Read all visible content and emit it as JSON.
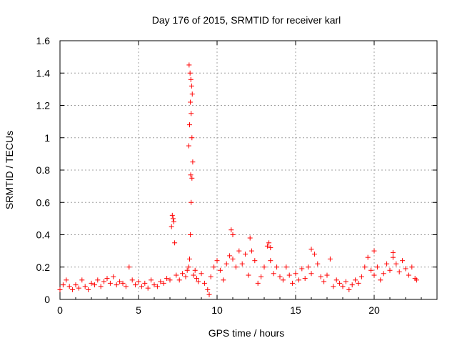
{
  "chart_data": {
    "type": "scatter",
    "title": "Day 176 of 2015, SRMTID for receiver karl",
    "xlabel": "GPS time / hours",
    "ylabel": "SRMTID / TECUs",
    "xlim": [
      0,
      24
    ],
    "ylim": [
      0,
      1.6
    ],
    "xticks": [
      0,
      5,
      10,
      15,
      20
    ],
    "yticks": [
      0,
      0.2,
      0.4,
      0.6,
      0.8,
      1,
      1.2,
      1.4,
      1.6
    ],
    "xtick_labels": [
      "0",
      "5",
      "10",
      "15",
      "20"
    ],
    "ytick_labels": [
      "0",
      "0.2",
      "0.4",
      "0.6",
      "0.8",
      "1",
      "1.2",
      "1.4",
      "1.6"
    ],
    "grid": true,
    "marker": "+",
    "color": "#ff0000",
    "series": [
      {
        "name": "SRMTID",
        "x": [
          0.0,
          0.2,
          0.4,
          0.6,
          0.8,
          1.0,
          1.2,
          1.4,
          1.6,
          1.8,
          2.0,
          2.2,
          2.4,
          2.6,
          2.8,
          3.0,
          3.2,
          3.4,
          3.6,
          3.8,
          4.0,
          4.2,
          4.4,
          4.6,
          4.8,
          5.0,
          5.2,
          5.4,
          5.6,
          5.8,
          6.0,
          6.2,
          6.4,
          6.6,
          6.8,
          7.0,
          7.1,
          7.2,
          7.3,
          7.4,
          7.6,
          7.8,
          8.0,
          8.1,
          8.2,
          8.25,
          8.3,
          8.35,
          8.4,
          8.45,
          8.5,
          8.6,
          8.7,
          8.8,
          9.0,
          9.2,
          9.4,
          9.5,
          9.6,
          9.8,
          10.0,
          10.2,
          10.4,
          10.6,
          10.8,
          11.0,
          11.2,
          11.4,
          11.6,
          11.8,
          12.0,
          12.2,
          12.4,
          12.6,
          12.8,
          13.0,
          13.2,
          13.4,
          13.6,
          13.8,
          14.0,
          14.2,
          14.4,
          14.6,
          14.8,
          15.0,
          15.2,
          15.4,
          15.6,
          15.8,
          16.0,
          16.2,
          16.4,
          16.6,
          16.8,
          17.0,
          17.2,
          17.4,
          17.6,
          17.8,
          18.0,
          18.2,
          18.4,
          18.6,
          18.8,
          19.0,
          19.2,
          19.4,
          19.6,
          19.8,
          20.0,
          20.2,
          20.4,
          20.6,
          20.8,
          21.0,
          21.2,
          21.4,
          21.6,
          21.8,
          22.0,
          22.2,
          22.4,
          22.6,
          22.7,
          7.15,
          7.25,
          8.22,
          8.28,
          8.33,
          8.38,
          8.42,
          8.3,
          8.35,
          8.25,
          8.4,
          8.2,
          8.32,
          10.9,
          11.0,
          12.1,
          13.3,
          13.4,
          16.0,
          20.0,
          21.2
        ],
        "y": [
          0.06,
          0.09,
          0.12,
          0.08,
          0.06,
          0.09,
          0.07,
          0.12,
          0.08,
          0.06,
          0.1,
          0.09,
          0.12,
          0.08,
          0.11,
          0.13,
          0.1,
          0.14,
          0.09,
          0.11,
          0.1,
          0.08,
          0.2,
          0.12,
          0.09,
          0.11,
          0.08,
          0.1,
          0.07,
          0.12,
          0.09,
          0.08,
          0.11,
          0.1,
          0.13,
          0.12,
          0.45,
          0.5,
          0.35,
          0.15,
          0.12,
          0.16,
          0.14,
          0.18,
          0.2,
          0.25,
          0.4,
          0.6,
          0.75,
          0.85,
          0.15,
          0.18,
          0.13,
          0.11,
          0.16,
          0.1,
          0.06,
          0.03,
          0.14,
          0.2,
          0.24,
          0.18,
          0.12,
          0.22,
          0.27,
          0.25,
          0.2,
          0.3,
          0.22,
          0.28,
          0.15,
          0.3,
          0.24,
          0.1,
          0.14,
          0.2,
          0.33,
          0.24,
          0.16,
          0.2,
          0.14,
          0.12,
          0.2,
          0.15,
          0.1,
          0.16,
          0.12,
          0.19,
          0.13,
          0.2,
          0.16,
          0.28,
          0.22,
          0.14,
          0.11,
          0.15,
          0.25,
          0.08,
          0.12,
          0.1,
          0.08,
          0.11,
          0.06,
          0.09,
          0.12,
          0.1,
          0.14,
          0.2,
          0.26,
          0.18,
          0.15,
          0.2,
          0.12,
          0.16,
          0.22,
          0.18,
          0.26,
          0.22,
          0.17,
          0.24,
          0.19,
          0.15,
          0.2,
          0.13,
          0.12,
          0.52,
          0.48,
          1.45,
          1.4,
          1.36,
          1.32,
          1.27,
          1.22,
          1.15,
          1.08,
          1.0,
          0.95,
          0.77,
          0.43,
          0.4,
          0.38,
          0.35,
          0.32,
          0.31,
          0.3,
          0.29
        ]
      }
    ]
  }
}
